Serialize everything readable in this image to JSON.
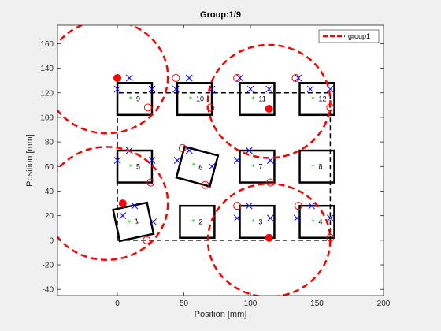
{
  "chart_data": {
    "type": "scatter",
    "title": "Group:1/9",
    "xlabel": "Position [mm]",
    "ylabel": "Position [mm]",
    "xlim": [
      -45,
      200
    ],
    "ylim": [
      -45,
      175
    ],
    "xticks": [
      0,
      50,
      100,
      150,
      200
    ],
    "yticks": [
      -40,
      -20,
      0,
      20,
      40,
      60,
      80,
      100,
      120,
      140,
      160
    ],
    "grid": false,
    "legend": {
      "placement": "top-right",
      "entries": [
        {
          "label": "group1",
          "color": "#ff0000",
          "style": "dashed"
        }
      ]
    },
    "colors": {
      "tile": "#000000",
      "group": "#ff0000",
      "cross": "#0000ff",
      "star": "#00cc00",
      "path": "#000000",
      "axes_bg": "#ffffff",
      "figure_bg": "#f0f0f0"
    },
    "path": [
      [
        0,
        0
      ],
      [
        160,
        0
      ],
      [
        160,
        120
      ],
      [
        0,
        120
      ],
      [
        0,
        0
      ]
    ],
    "tiles": [
      {
        "label": "1",
        "center": [
          12,
          15
        ],
        "size": 26,
        "angle": -12
      },
      {
        "label": "2",
        "center": [
          60,
          15
        ],
        "size": 26,
        "angle": 0
      },
      {
        "label": "3",
        "center": [
          105,
          15
        ],
        "size": 26,
        "angle": 0
      },
      {
        "label": "4",
        "center": [
          150,
          15
        ],
        "size": 26,
        "angle": 0
      },
      {
        "label": "5",
        "center": [
          13,
          60
        ],
        "size": 26,
        "angle": 0
      },
      {
        "label": "6",
        "center": [
          60,
          60
        ],
        "size": 26,
        "angle": 15
      },
      {
        "label": "7",
        "center": [
          105,
          60
        ],
        "size": 26,
        "angle": 0
      },
      {
        "label": "8",
        "center": [
          150,
          60
        ],
        "size": 26,
        "angle": 0
      },
      {
        "label": "9",
        "center": [
          13,
          115
        ],
        "size": 26,
        "angle": 0
      },
      {
        "label": "10",
        "center": [
          58,
          115
        ],
        "size": 26,
        "angle": 0
      },
      {
        "label": "11",
        "center": [
          105,
          115
        ],
        "size": 26,
        "angle": 0
      },
      {
        "label": "12",
        "center": [
          150,
          115
        ],
        "size": 26,
        "angle": 0
      }
    ],
    "open_circles": [
      [
        23,
        108
      ],
      [
        44,
        132
      ],
      [
        70,
        108
      ],
      [
        90,
        132
      ],
      [
        134,
        132
      ],
      [
        160,
        108
      ],
      [
        49,
        75
      ],
      [
        66,
        45
      ],
      [
        25,
        47
      ],
      [
        115,
        47
      ],
      [
        90,
        28
      ],
      [
        136,
        28
      ],
      [
        22,
        0
      ],
      [
        160,
        2
      ]
    ],
    "filled_circles": [
      [
        0,
        132
      ],
      [
        114,
        107
      ],
      [
        4,
        30
      ],
      [
        114,
        2
      ]
    ],
    "crosses": [
      [
        0,
        123
      ],
      [
        9,
        132
      ],
      [
        26,
        123
      ],
      [
        44,
        123
      ],
      [
        54,
        132
      ],
      [
        71,
        123
      ],
      [
        100,
        123
      ],
      [
        92,
        132
      ],
      [
        114,
        123
      ],
      [
        145,
        123
      ],
      [
        136,
        132
      ],
      [
        160,
        123
      ],
      [
        0,
        65
      ],
      [
        9,
        73
      ],
      [
        26,
        65
      ],
      [
        45,
        65
      ],
      [
        54,
        73
      ],
      [
        71,
        60
      ],
      [
        90,
        65
      ],
      [
        99,
        73
      ],
      [
        115,
        65
      ],
      [
        4,
        20
      ],
      [
        13,
        28
      ],
      [
        27,
        15
      ],
      [
        90,
        18
      ],
      [
        99,
        28
      ],
      [
        115,
        18
      ],
      [
        135,
        18
      ],
      [
        146,
        28
      ],
      [
        160,
        18
      ]
    ],
    "group_circles": [
      {
        "center": [
          -8,
          133
        ],
        "radius": 46
      },
      {
        "center": [
          114,
          113
        ],
        "radius": 46
      },
      {
        "center": [
          -8,
          30
        ],
        "radius": 46
      },
      {
        "center": [
          114,
          0
        ],
        "radius": 46
      }
    ]
  }
}
